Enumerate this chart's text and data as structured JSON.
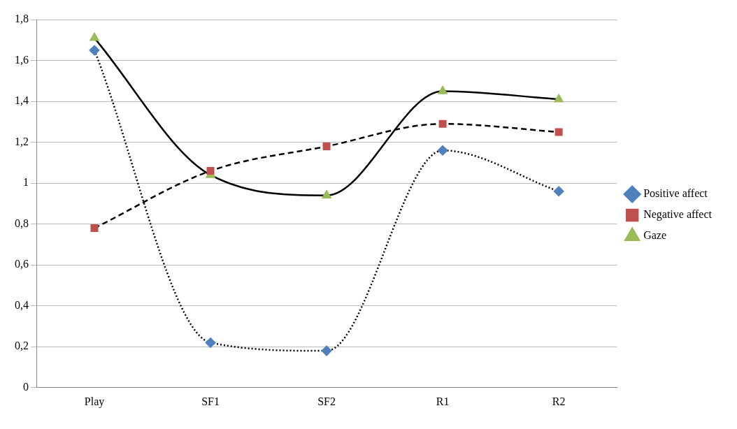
{
  "chart_data": {
    "type": "line",
    "categories": [
      "Play",
      "SF1",
      "SF2",
      "R1",
      "R2"
    ],
    "series": [
      {
        "name": "Positive affect",
        "color": "#4f81bd",
        "values": [
          1.65,
          0.22,
          0.18,
          1.16,
          0.96
        ],
        "marker": "diamond",
        "line_style": "dotted"
      },
      {
        "name": "Negative affect",
        "color": "#c0504d",
        "values": [
          0.78,
          1.06,
          1.18,
          1.29,
          1.25
        ],
        "marker": "square",
        "line_style": "dashed"
      },
      {
        "name": "Gaze",
        "color": "#9bbb59",
        "values": [
          1.71,
          1.04,
          0.94,
          1.45,
          1.41
        ],
        "marker": "triangle",
        "line_style": "solid"
      }
    ],
    "ylim": [
      0,
      1.8
    ],
    "yticks": [
      0,
      {
        "value": 0.2,
        "label": "0,2"
      },
      {
        "value": 0.4,
        "label": "0,4"
      },
      {
        "value": 0.6,
        "label": "0,6"
      },
      {
        "value": 0.8,
        "label": "0,8"
      },
      1,
      {
        "value": 1.2,
        "label": "1,2"
      },
      {
        "value": 1.4,
        "label": "1,4"
      },
      {
        "value": 1.6,
        "label": "1,6"
      },
      {
        "value": 1.8,
        "label": "1,8"
      }
    ],
    "grid": "y",
    "legend": "right"
  }
}
